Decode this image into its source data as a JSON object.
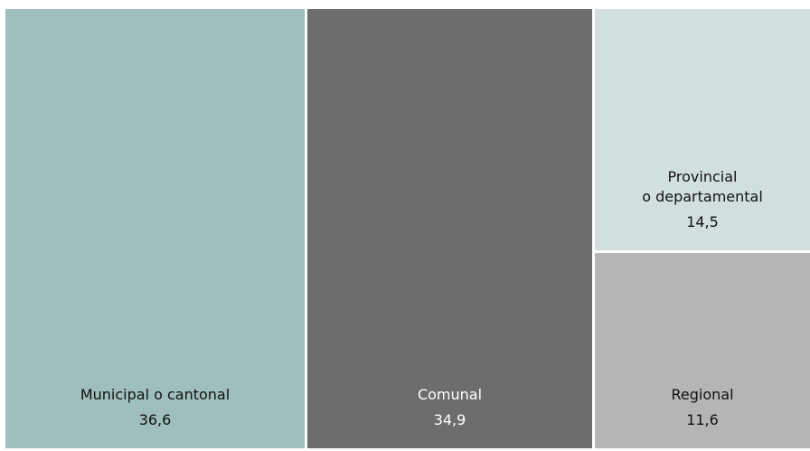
{
  "colors": {
    "background": "#ffffff"
  },
  "chart_data": {
    "type": "treemap",
    "title": "",
    "items": [
      {
        "name": "Municipal o cantonal",
        "value": 36.6,
        "value_label": "36,6",
        "color": "#9fbfbc",
        "text_color": "#111111"
      },
      {
        "name": "Comunal",
        "value": 34.9,
        "value_label": "34,9",
        "color": "#6d6d6d",
        "text_color": "#ffffff"
      },
      {
        "name": "Provincial\no departamental",
        "value": 14.5,
        "value_label": "14,5",
        "color": "#d1e0df",
        "text_color": "#111111"
      },
      {
        "name": "Regional",
        "value": 11.6,
        "value_label": "11,6",
        "color": "#b5b5b5",
        "text_color": "#111111"
      }
    ]
  }
}
